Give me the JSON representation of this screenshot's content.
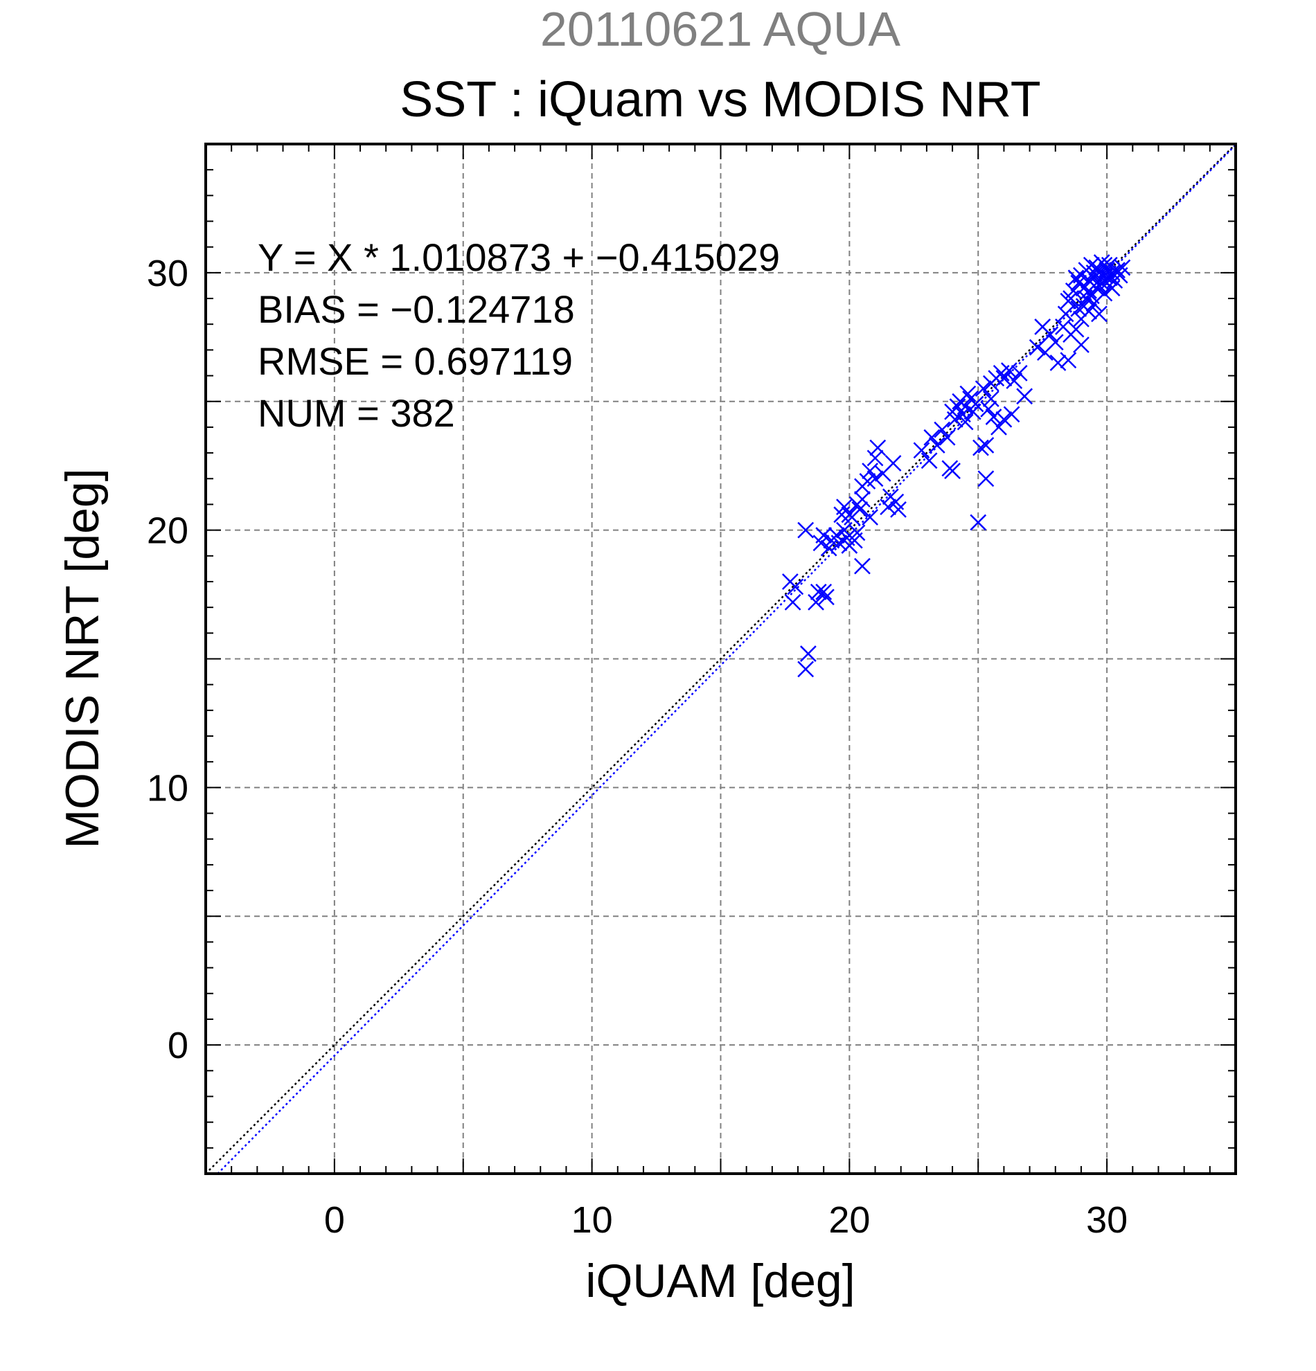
{
  "chart_data": {
    "type": "scatter",
    "supertitle": "20110621 AQUA",
    "title": "SST : iQuam vs MODIS NRT",
    "xlabel": "iQUAM [deg]",
    "ylabel": "MODIS NRT [deg]",
    "xlim": [
      -5,
      35
    ],
    "ylim": [
      -5,
      35
    ],
    "xticks": [
      0,
      10,
      20,
      30
    ],
    "yticks": [
      0,
      10,
      20,
      30
    ],
    "grid": true,
    "grid_step": 5,
    "stats": {
      "equation": "Y = X * 1.010873 + −0.415029",
      "bias": "BIAS = −0.124718",
      "rmse": "RMSE = 0.697119",
      "num": "NUM = 382"
    },
    "fit": {
      "slope": 1.010873,
      "intercept": -0.415029
    },
    "colors": {
      "points": "#0000ff",
      "fit_line": "#0000ff",
      "identity_line": "#000000",
      "grid": "#808080"
    },
    "marker": "x",
    "series": [
      {
        "points": [
          [
            17.7,
            18.0
          ],
          [
            17.9,
            17.8
          ],
          [
            17.8,
            17.2
          ],
          [
            18.3,
            20.0
          ],
          [
            18.3,
            14.6
          ],
          [
            18.4,
            15.2
          ],
          [
            18.7,
            17.2
          ],
          [
            18.8,
            17.6
          ],
          [
            19.0,
            17.6
          ],
          [
            19.1,
            17.4
          ],
          [
            18.9,
            19.5
          ],
          [
            19.0,
            19.8
          ],
          [
            19.2,
            19.3
          ],
          [
            19.3,
            19.6
          ],
          [
            19.5,
            19.8
          ],
          [
            19.6,
            19.5
          ],
          [
            19.8,
            20.0
          ],
          [
            19.9,
            19.7
          ],
          [
            20.0,
            19.4
          ],
          [
            19.7,
            20.6
          ],
          [
            19.8,
            20.9
          ],
          [
            20.1,
            20.5
          ],
          [
            20.3,
            21.0
          ],
          [
            20.4,
            20.8
          ],
          [
            20.5,
            21.2
          ],
          [
            20.5,
            21.7
          ],
          [
            20.5,
            18.6
          ],
          [
            20.3,
            19.9
          ],
          [
            20.7,
            21.9
          ],
          [
            20.8,
            22.3
          ],
          [
            20.8,
            20.5
          ],
          [
            21.0,
            22.0
          ],
          [
            21.0,
            22.8
          ],
          [
            21.1,
            23.2
          ],
          [
            21.3,
            22.2
          ],
          [
            21.5,
            20.9
          ],
          [
            21.6,
            21.3
          ],
          [
            21.7,
            22.6
          ],
          [
            21.8,
            21.1
          ],
          [
            21.9,
            20.8
          ],
          [
            20.0,
            20.6
          ],
          [
            20.2,
            19.6
          ],
          [
            22.8,
            23.1
          ],
          [
            23.1,
            22.7
          ],
          [
            23.2,
            23.6
          ],
          [
            23.4,
            23.3
          ],
          [
            23.6,
            23.9
          ],
          [
            23.8,
            23.6
          ],
          [
            23.9,
            22.4
          ],
          [
            24.0,
            22.3
          ],
          [
            24.1,
            24.3
          ],
          [
            24.2,
            24.8
          ],
          [
            24.3,
            25.0
          ],
          [
            24.4,
            24.5
          ],
          [
            24.5,
            24.8
          ],
          [
            24.5,
            24.2
          ],
          [
            24.7,
            25.1
          ],
          [
            24.8,
            24.6
          ],
          [
            24.9,
            24.9
          ],
          [
            25.0,
            20.3
          ],
          [
            25.1,
            23.2
          ],
          [
            25.3,
            23.3
          ],
          [
            25.3,
            22.0
          ],
          [
            25.4,
            24.7
          ],
          [
            25.5,
            25.1
          ],
          [
            25.5,
            25.7
          ],
          [
            25.6,
            24.4
          ],
          [
            25.7,
            25.9
          ],
          [
            25.8,
            24.0
          ],
          [
            25.9,
            26.1
          ],
          [
            26.0,
            25.9
          ],
          [
            26.0,
            24.3
          ],
          [
            26.2,
            26.2
          ],
          [
            26.3,
            24.5
          ],
          [
            26.4,
            25.8
          ],
          [
            26.6,
            26.1
          ],
          [
            26.8,
            25.2
          ],
          [
            24.6,
            25.3
          ],
          [
            25.2,
            25.5
          ],
          [
            24.0,
            24.6
          ],
          [
            27.3,
            27.1
          ],
          [
            27.5,
            27.9
          ],
          [
            27.6,
            26.9
          ],
          [
            27.8,
            27.6
          ],
          [
            28.0,
            27.3
          ],
          [
            28.1,
            26.5
          ],
          [
            28.3,
            27.9
          ],
          [
            28.4,
            28.4
          ],
          [
            28.5,
            26.6
          ],
          [
            28.5,
            28.9
          ],
          [
            28.6,
            27.6
          ],
          [
            28.7,
            29.3
          ],
          [
            28.8,
            27.8
          ],
          [
            28.9,
            29.6
          ],
          [
            28.9,
            28.6
          ],
          [
            29.0,
            29.9
          ],
          [
            29.0,
            27.2
          ],
          [
            29.1,
            29.4
          ],
          [
            29.1,
            28.7
          ],
          [
            29.2,
            30.1
          ],
          [
            29.2,
            29.0
          ],
          [
            29.3,
            29.7
          ],
          [
            29.3,
            28.5
          ],
          [
            29.4,
            30.3
          ],
          [
            29.4,
            29.1
          ],
          [
            29.5,
            29.8
          ],
          [
            29.5,
            28.8
          ],
          [
            29.6,
            30.2
          ],
          [
            29.6,
            29.4
          ],
          [
            29.7,
            30.0
          ],
          [
            29.7,
            28.4
          ],
          [
            29.8,
            29.6
          ],
          [
            29.8,
            30.4
          ],
          [
            29.9,
            29.9
          ],
          [
            29.9,
            29.2
          ],
          [
            30.0,
            30.1
          ],
          [
            30.0,
            29.6
          ],
          [
            30.1,
            30.3
          ],
          [
            30.1,
            29.8
          ],
          [
            30.2,
            30.0
          ],
          [
            30.3,
            29.7
          ],
          [
            30.4,
            30.1
          ],
          [
            30.5,
            29.9
          ],
          [
            30.6,
            30.2
          ],
          [
            28.6,
            29.0
          ],
          [
            28.8,
            29.8
          ],
          [
            29.0,
            28.2
          ],
          [
            29.3,
            29.3
          ],
          [
            29.5,
            30.0
          ],
          [
            29.7,
            29.5
          ],
          [
            29.9,
            30.3
          ],
          [
            30.2,
            29.4
          ]
        ]
      }
    ]
  }
}
